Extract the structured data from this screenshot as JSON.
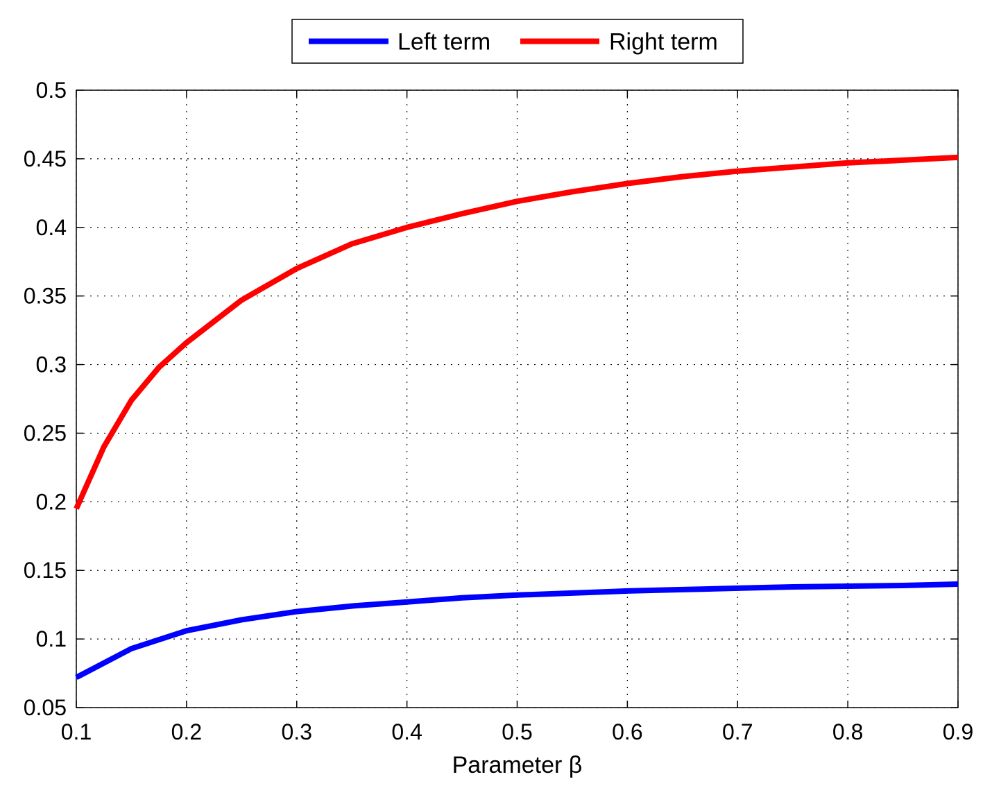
{
  "chart_data": {
    "type": "line",
    "xlabel": "Parameter β",
    "ylabel": "",
    "xlim": [
      0.1,
      0.9
    ],
    "ylim": [
      0.05,
      0.5
    ],
    "xticks": [
      0.1,
      0.2,
      0.3,
      0.4,
      0.5,
      0.6,
      0.7,
      0.8,
      0.9
    ],
    "yticks": [
      0.05,
      0.1,
      0.15,
      0.2,
      0.25,
      0.3,
      0.35,
      0.4,
      0.45,
      0.5
    ],
    "xtick_labels": [
      "0.1",
      "0.2",
      "0.3",
      "0.4",
      "0.5",
      "0.6",
      "0.7",
      "0.8",
      "0.9"
    ],
    "ytick_labels": [
      "0.05",
      "0.1",
      "0.15",
      "0.2",
      "0.25",
      "0.3",
      "0.35",
      "0.4",
      "0.45",
      "0.5"
    ],
    "grid": true,
    "legend_position": "top-center",
    "series": [
      {
        "name": "Left term",
        "color": "#0000ff",
        "x": [
          0.1,
          0.15,
          0.2,
          0.25,
          0.3,
          0.35,
          0.4,
          0.45,
          0.5,
          0.55,
          0.6,
          0.65,
          0.7,
          0.75,
          0.8,
          0.85,
          0.9
        ],
        "y": [
          0.072,
          0.093,
          0.106,
          0.114,
          0.12,
          0.124,
          0.127,
          0.13,
          0.132,
          0.1335,
          0.135,
          0.136,
          0.137,
          0.138,
          0.1385,
          0.139,
          0.14
        ]
      },
      {
        "name": "Right term",
        "color": "#ff0000",
        "x": [
          0.1,
          0.125,
          0.15,
          0.175,
          0.2,
          0.25,
          0.3,
          0.35,
          0.4,
          0.45,
          0.5,
          0.55,
          0.6,
          0.65,
          0.7,
          0.75,
          0.8,
          0.85,
          0.9
        ],
        "y": [
          0.195,
          0.24,
          0.274,
          0.298,
          0.316,
          0.347,
          0.37,
          0.388,
          0.4,
          0.41,
          0.419,
          0.426,
          0.432,
          0.437,
          0.441,
          0.444,
          0.447,
          0.449,
          0.451
        ]
      }
    ]
  }
}
